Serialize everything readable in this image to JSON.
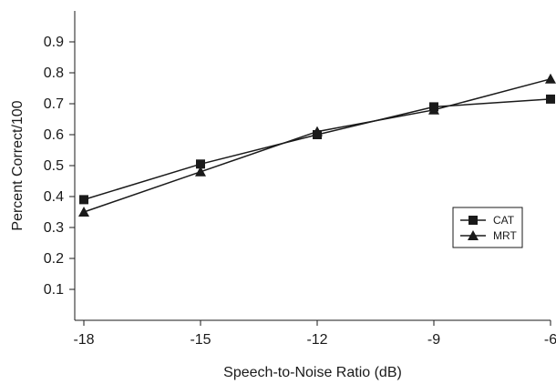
{
  "chart_data": {
    "type": "line",
    "title": "",
    "xlabel": "Speech-to-Noise Ratio (dB)",
    "ylabel": "Percent Correct/100",
    "x": [
      -18,
      -15,
      -12,
      -9,
      -6
    ],
    "xticks": [
      "-18",
      "-15",
      "-12",
      "-9",
      "-6"
    ],
    "yticks": [
      "0.1",
      "0.2",
      "0.3",
      "0.4",
      "0.5",
      "0.6",
      "0.7",
      "0.8",
      "0.9"
    ],
    "xlim": [
      -18,
      -6
    ],
    "ylim": [
      0,
      1
    ],
    "grid": false,
    "legend_position": "right",
    "series": [
      {
        "name": "CAT",
        "marker": "square",
        "values": [
          0.39,
          0.505,
          0.6,
          0.69,
          0.715
        ]
      },
      {
        "name": "MRT",
        "marker": "triangle",
        "values": [
          0.35,
          0.48,
          0.61,
          0.68,
          0.78
        ]
      }
    ],
    "colors": {
      "line": "#1a1a1a",
      "axis": "#1a1a1a"
    }
  }
}
